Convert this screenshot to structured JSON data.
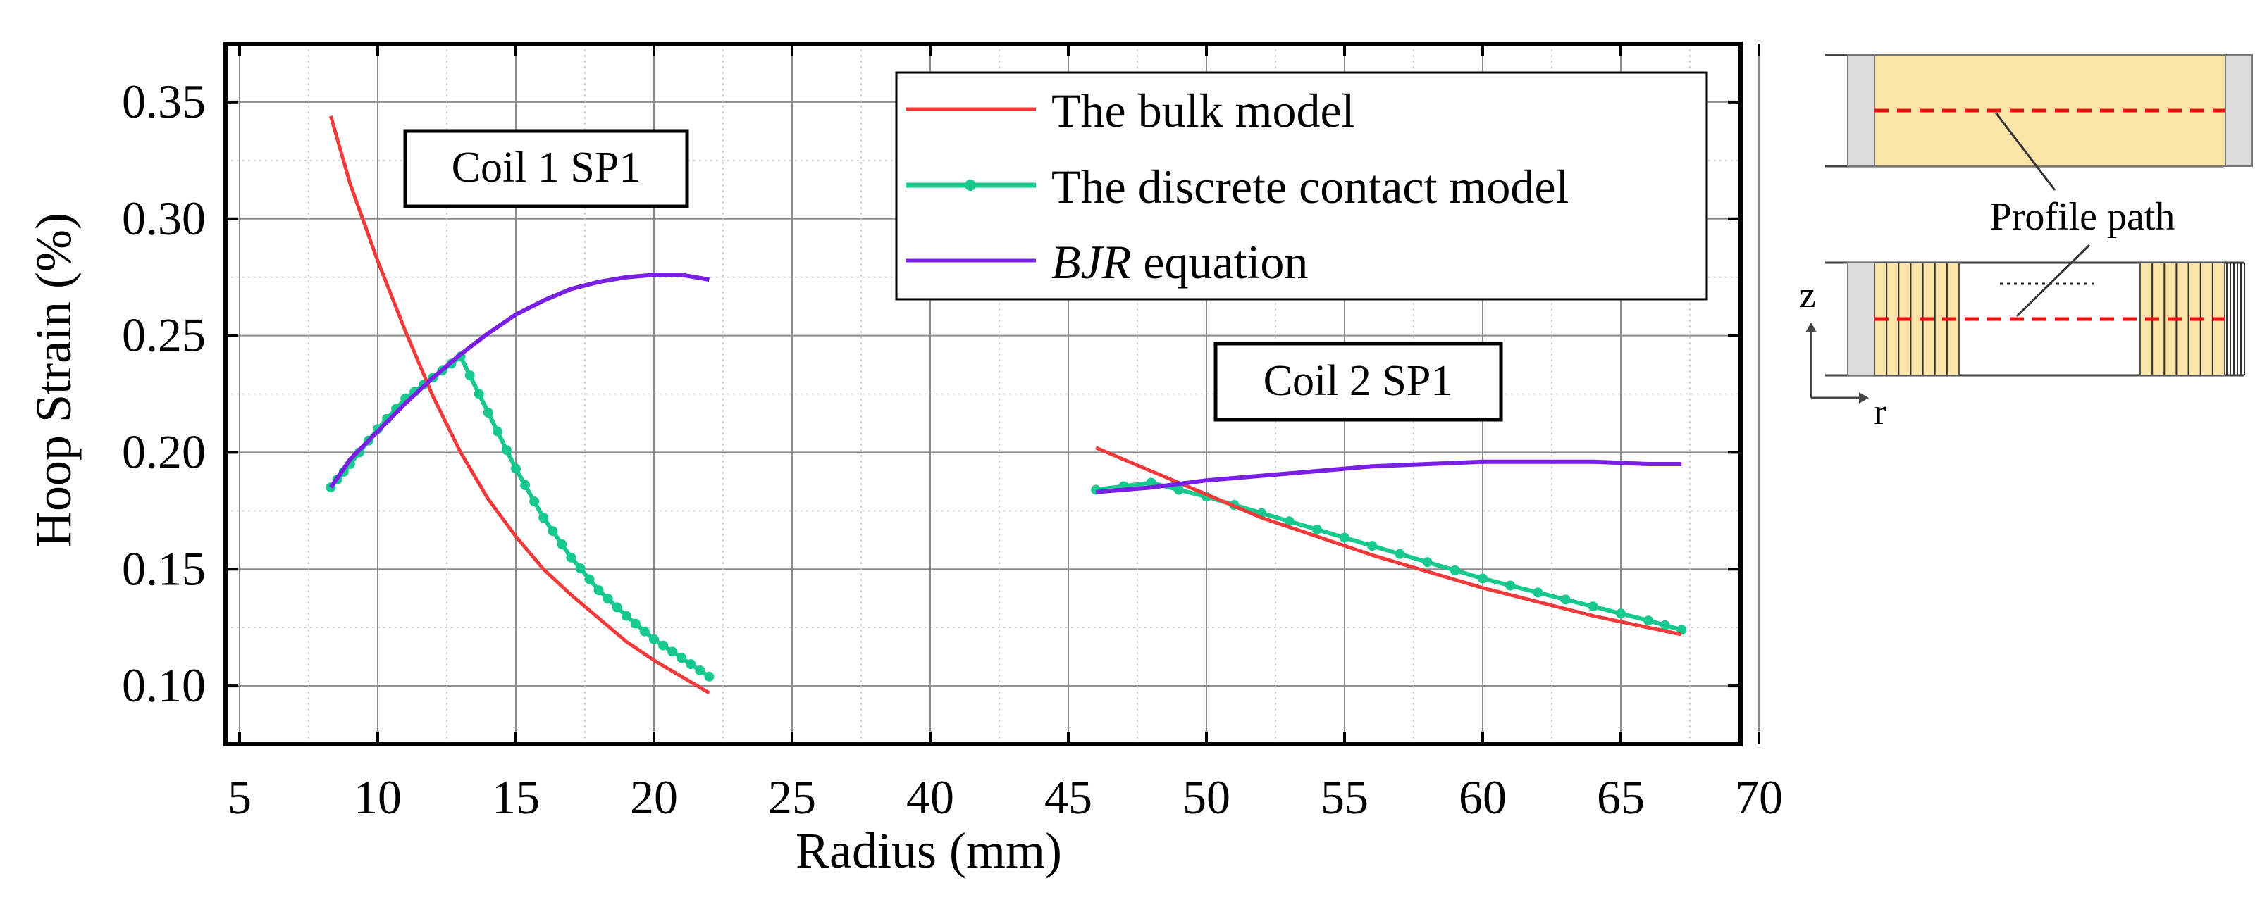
{
  "chart_data": {
    "type": "line",
    "xlabel": "Radius (mm)",
    "ylabel": "Hoop Strain (%)",
    "ylim": [
      0.075,
      0.375
    ],
    "yticks": [
      0.1,
      0.15,
      0.2,
      0.25,
      0.3,
      0.35
    ],
    "ytick_labels": [
      "0.10",
      "0.15",
      "0.20",
      "0.25",
      "0.30",
      "0.35"
    ],
    "xticks": [
      5,
      10,
      15,
      20,
      25,
      40,
      45,
      50,
      55,
      60,
      65,
      70
    ],
    "xtick_labels": [
      "5",
      "10",
      "15",
      "20",
      "25",
      "40",
      "45",
      "50",
      "55",
      "60",
      "65",
      "70"
    ],
    "x_axis_note": "broken axis: 25 is followed directly by 40",
    "grid": true,
    "legend_position": "top-right",
    "series": [
      {
        "name": "The bulk model",
        "color": "#f23a3a",
        "style": "line"
      },
      {
        "name": "The discrete contact model",
        "color": "#17c98f",
        "style": "line-markers"
      },
      {
        "name_prefix": "BJR",
        "name_suffix": " equation",
        "color": "#7a1fe6",
        "style": "line"
      }
    ],
    "annotations": [
      "Coil 1 SP1",
      "Coil 2 SP1"
    ],
    "coil1": {
      "bulk": [
        [
          8.3,
          0.344
        ],
        [
          9,
          0.315
        ],
        [
          10,
          0.282
        ],
        [
          11,
          0.252
        ],
        [
          12,
          0.224
        ],
        [
          13,
          0.2
        ],
        [
          14,
          0.18
        ],
        [
          15,
          0.164
        ],
        [
          16,
          0.15
        ],
        [
          17,
          0.139
        ],
        [
          18,
          0.129
        ],
        [
          19,
          0.119
        ],
        [
          20,
          0.111
        ],
        [
          21,
          0.104
        ],
        [
          22,
          0.097
        ]
      ],
      "discrete": [
        [
          8.3,
          0.185
        ],
        [
          9,
          0.195
        ],
        [
          10,
          0.21
        ],
        [
          11,
          0.223
        ],
        [
          12,
          0.232
        ],
        [
          13,
          0.241
        ],
        [
          14,
          0.217
        ],
        [
          15,
          0.193
        ],
        [
          16,
          0.172
        ],
        [
          17,
          0.155
        ],
        [
          18,
          0.141
        ],
        [
          19,
          0.13
        ],
        [
          20,
          0.12
        ],
        [
          21,
          0.112
        ],
        [
          22,
          0.104
        ]
      ],
      "bjr": [
        [
          8.3,
          0.185
        ],
        [
          9,
          0.197
        ],
        [
          10,
          0.209
        ],
        [
          11,
          0.221
        ],
        [
          12,
          0.232
        ],
        [
          13,
          0.242
        ],
        [
          14,
          0.251
        ],
        [
          15,
          0.259
        ],
        [
          16,
          0.265
        ],
        [
          17,
          0.27
        ],
        [
          18,
          0.273
        ],
        [
          19,
          0.275
        ],
        [
          20,
          0.276
        ],
        [
          21,
          0.276
        ],
        [
          22,
          0.274
        ]
      ]
    },
    "coil2": {
      "bulk": [
        [
          46,
          0.202
        ],
        [
          48,
          0.192
        ],
        [
          50,
          0.182
        ],
        [
          52,
          0.172
        ],
        [
          54,
          0.164
        ],
        [
          56,
          0.156
        ],
        [
          58,
          0.149
        ],
        [
          60,
          0.142
        ],
        [
          62,
          0.136
        ],
        [
          64,
          0.13
        ],
        [
          66,
          0.125
        ],
        [
          67.2,
          0.122
        ]
      ],
      "discrete": [
        [
          46,
          0.184
        ],
        [
          48,
          0.187
        ],
        [
          50,
          0.181
        ],
        [
          52,
          0.174
        ],
        [
          54,
          0.167
        ],
        [
          56,
          0.16
        ],
        [
          58,
          0.153
        ],
        [
          60,
          0.146
        ],
        [
          62,
          0.14
        ],
        [
          64,
          0.134
        ],
        [
          66,
          0.128
        ],
        [
          67.2,
          0.124
        ]
      ],
      "bjr": [
        [
          46,
          0.183
        ],
        [
          48,
          0.185
        ],
        [
          50,
          0.188
        ],
        [
          52,
          0.19
        ],
        [
          54,
          0.192
        ],
        [
          56,
          0.194
        ],
        [
          58,
          0.195
        ],
        [
          60,
          0.196
        ],
        [
          62,
          0.196
        ],
        [
          64,
          0.196
        ],
        [
          66,
          0.195
        ],
        [
          67.2,
          0.195
        ]
      ]
    }
  },
  "schematic": {
    "profile_path_label": "Profile path",
    "axis_z": "z",
    "axis_r": "r"
  }
}
